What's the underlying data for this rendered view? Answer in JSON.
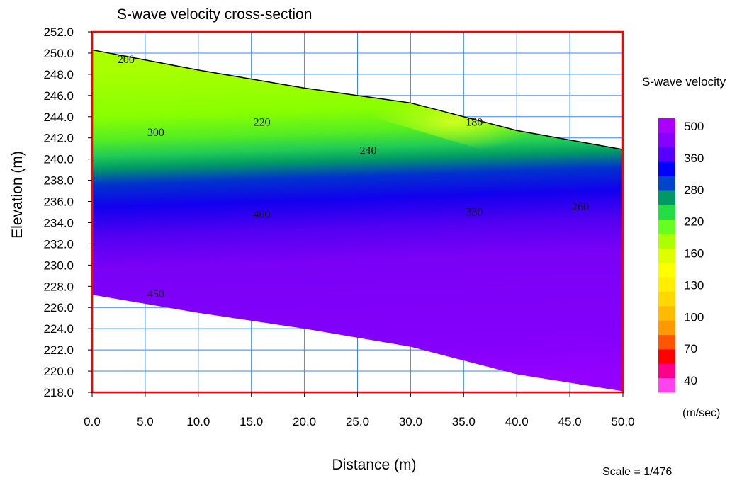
{
  "chart_data": {
    "type": "heatmap",
    "title": "S-wave velocity cross-section",
    "xlabel": "Distance (m)",
    "ylabel": "Elevation (m)",
    "xlim": [
      0,
      50
    ],
    "ylim": [
      218,
      252
    ],
    "x_ticks": [
      "0.0",
      "5.0",
      "10.0",
      "15.0",
      "20.0",
      "25.0",
      "30.0",
      "35.0",
      "40.0",
      "45.0",
      "50.0"
    ],
    "y_ticks": [
      "218.0",
      "220.0",
      "222.0",
      "224.0",
      "226.0",
      "228.0",
      "230.0",
      "232.0",
      "234.0",
      "236.0",
      "238.0",
      "240.0",
      "242.0",
      "244.0",
      "246.0",
      "248.0",
      "250.0",
      "252.0"
    ],
    "grid": true,
    "surface_profile": {
      "x": [
        0,
        10,
        20,
        30,
        40,
        50
      ],
      "elevation": [
        250.3,
        248.4,
        246.7,
        245.3,
        242.7,
        240.9
      ]
    },
    "bottom_profile": {
      "x": [
        0,
        10,
        20,
        30,
        40,
        50
      ],
      "elevation": [
        227.2,
        225.5,
        224.0,
        222.3,
        219.7,
        218.1
      ]
    },
    "contour_labels": [
      {
        "text": "200",
        "x": 3.2,
        "y": 249.4
      },
      {
        "text": "220",
        "x": 16.0,
        "y": 243.5
      },
      {
        "text": "180",
        "x": 36.0,
        "y": 243.5
      },
      {
        "text": "300",
        "x": 6.0,
        "y": 242.5
      },
      {
        "text": "240",
        "x": 26.0,
        "y": 240.8
      },
      {
        "text": "400",
        "x": 16.0,
        "y": 234.8
      },
      {
        "text": "330",
        "x": 36.0,
        "y": 235.0
      },
      {
        "text": "260",
        "x": 46.0,
        "y": 235.5
      },
      {
        "text": "450",
        "x": 6.0,
        "y": 227.3
      }
    ],
    "legend": {
      "title": "S-wave velocity",
      "unit": "(m/sec)",
      "labels": [
        "500",
        "360",
        "280",
        "220",
        "160",
        "130",
        "100",
        "70",
        "40"
      ],
      "colors": [
        "#ff44ee",
        "#ff0088",
        "#ff0000",
        "#ff5500",
        "#ff9900",
        "#ffbb00",
        "#ffd800",
        "#ffee00",
        "#ffff00",
        "#ddff00",
        "#aaff00",
        "#66ff22",
        "#22dd44",
        "#009966",
        "#0044cc",
        "#0000ff",
        "#5500ff",
        "#8800ff",
        "#aa00ff"
      ]
    },
    "scale_text": "Scale = 1/476"
  }
}
